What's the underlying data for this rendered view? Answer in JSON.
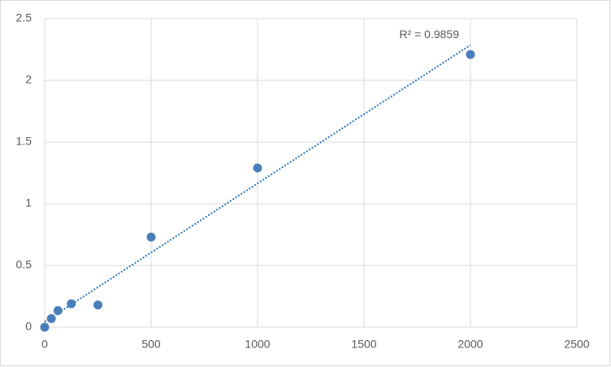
{
  "chart_data": {
    "type": "scatter",
    "x": [
      0,
      31.25,
      62.5,
      125,
      250,
      500,
      1000,
      2000
    ],
    "series": [
      {
        "color": "#4a7ebb",
        "values": [
          0,
          0.07,
          0.135,
          0.19,
          0.18,
          0.73,
          1.29,
          2.21
        ]
      }
    ],
    "xlim": [
      0,
      2500
    ],
    "xticks": [
      0,
      500,
      1000,
      1500,
      2000,
      2500
    ],
    "ylim": [
      0,
      2.5
    ],
    "yticks": [
      0,
      0.5,
      1,
      1.5,
      2,
      2.5
    ],
    "grid": true,
    "trendline": true,
    "trendline_color": "#2e75b6",
    "annotation": "R² = 0.9859"
  }
}
